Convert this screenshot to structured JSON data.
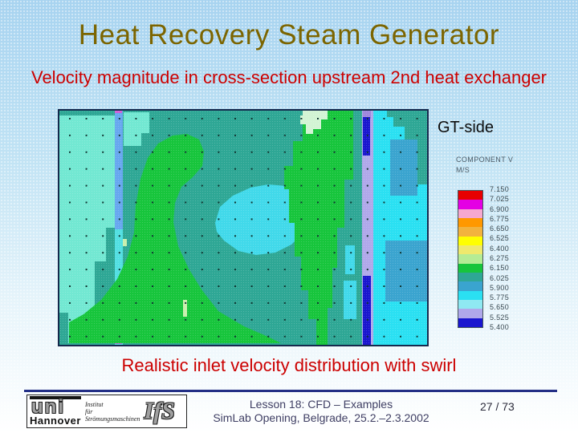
{
  "slide": {
    "title": "Heat Recovery Steam Generator",
    "subtitle": "Velocity magnitude in cross-section upstream 2nd heat exchanger",
    "caption": "Realistic inlet velocity distribution with swirl",
    "side_label": "GT-side"
  },
  "legend": {
    "heading_line1": "COMPONENT V",
    "heading_line2": "M/S",
    "entries": [
      {
        "value": "7.150",
        "color": "#e80000"
      },
      {
        "value": "7.025",
        "color": "#e400e4"
      },
      {
        "value": "6.900",
        "color": "#f6a8cf"
      },
      {
        "value": "6.775",
        "color": "#ff9800"
      },
      {
        "value": "6.650",
        "color": "#f2b33e"
      },
      {
        "value": "6.525",
        "color": "#ffff00"
      },
      {
        "value": "6.400",
        "color": "#efe96d"
      },
      {
        "value": "6.275",
        "color": "#b5ec95"
      },
      {
        "value": "6.150",
        "color": "#17c53c"
      },
      {
        "value": "6.025",
        "color": "#2ea795"
      },
      {
        "value": "5.900",
        "color": "#3aa4cf"
      },
      {
        "value": "5.775",
        "color": "#2ae0f2"
      },
      {
        "value": "5.650",
        "color": "#8fe9f2"
      },
      {
        "value": "5.525",
        "color": "#b0a8ea"
      },
      {
        "value": "5.400",
        "color": "#1a16cf"
      }
    ]
  },
  "figure": {
    "type": "contour-heatmap",
    "description": "CFD contour plot of velocity magnitude in HRSG cross-section with vector dot grid",
    "component": "COMPONENT V",
    "units": "M/S",
    "value_min": 5.4,
    "value_max": 7.15,
    "value_step": 0.125
  },
  "footer": {
    "line1": "Lesson 18: CFD – Examples",
    "line2": "SimLab Opening, Belgrade, 25.2.–2.3.2002",
    "page": "27 / 73",
    "logo": {
      "uni_text": "uni",
      "uni_sub": "Hannover",
      "institute_line1": "Institut",
      "institute_line2": "für",
      "institute_line3": "Strömungsmaschinen",
      "ifs_text": "IfS"
    }
  },
  "colors": {
    "title": "#7c6500",
    "accent_red": "#cc0000",
    "footer_text": "#3e3e63",
    "separator": "#232f86",
    "background_top": "#a7d3f0",
    "plot_base_teal": "#2ea795",
    "plot_green": "#17c53c",
    "plot_central_cyan": "#41d9ea",
    "plot_right_cyan": "#2ae0f2",
    "plot_blue_bar": "#1a16cf",
    "plot_lavender": "#b0a8ea"
  }
}
